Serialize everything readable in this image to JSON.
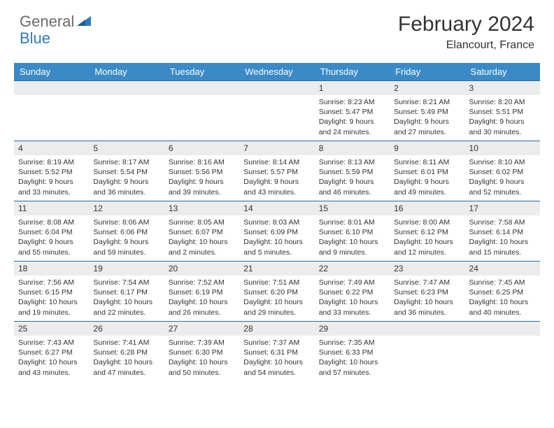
{
  "logo": {
    "general": "General",
    "blue": "Blue",
    "tri_color": "#2d7cc0"
  },
  "title": {
    "month": "February 2024",
    "location": "Elancourt, France",
    "month_fontsize": 30,
    "location_fontsize": 16,
    "title_color": "#333333"
  },
  "colors": {
    "header_bg": "#3a8ac8",
    "header_fg": "#ffffff",
    "row_border": "#2d6aa0",
    "daynum_bg": "#ececec",
    "body_text": "#333333",
    "page_bg": "#ffffff"
  },
  "typography": {
    "body_font": "Arial",
    "daybody_fontsize": 10.5,
    "daynum_fontsize": 12,
    "header_fontsize": 13
  },
  "calendar": {
    "type": "table",
    "days_of_week": [
      "Sunday",
      "Monday",
      "Tuesday",
      "Wednesday",
      "Thursday",
      "Friday",
      "Saturday"
    ],
    "weeks": [
      [
        null,
        null,
        null,
        null,
        {
          "n": "1",
          "sunrise": "8:23 AM",
          "sunset": "5:47 PM",
          "daylight": "9 hours and 24 minutes."
        },
        {
          "n": "2",
          "sunrise": "8:21 AM",
          "sunset": "5:49 PM",
          "daylight": "9 hours and 27 minutes."
        },
        {
          "n": "3",
          "sunrise": "8:20 AM",
          "sunset": "5:51 PM",
          "daylight": "9 hours and 30 minutes."
        }
      ],
      [
        {
          "n": "4",
          "sunrise": "8:19 AM",
          "sunset": "5:52 PM",
          "daylight": "9 hours and 33 minutes."
        },
        {
          "n": "5",
          "sunrise": "8:17 AM",
          "sunset": "5:54 PM",
          "daylight": "9 hours and 36 minutes."
        },
        {
          "n": "6",
          "sunrise": "8:16 AM",
          "sunset": "5:56 PM",
          "daylight": "9 hours and 39 minutes."
        },
        {
          "n": "7",
          "sunrise": "8:14 AM",
          "sunset": "5:57 PM",
          "daylight": "9 hours and 43 minutes."
        },
        {
          "n": "8",
          "sunrise": "8:13 AM",
          "sunset": "5:59 PM",
          "daylight": "9 hours and 46 minutes."
        },
        {
          "n": "9",
          "sunrise": "8:11 AM",
          "sunset": "6:01 PM",
          "daylight": "9 hours and 49 minutes."
        },
        {
          "n": "10",
          "sunrise": "8:10 AM",
          "sunset": "6:02 PM",
          "daylight": "9 hours and 52 minutes."
        }
      ],
      [
        {
          "n": "11",
          "sunrise": "8:08 AM",
          "sunset": "6:04 PM",
          "daylight": "9 hours and 55 minutes."
        },
        {
          "n": "12",
          "sunrise": "8:06 AM",
          "sunset": "6:06 PM",
          "daylight": "9 hours and 59 minutes."
        },
        {
          "n": "13",
          "sunrise": "8:05 AM",
          "sunset": "6:07 PM",
          "daylight": "10 hours and 2 minutes."
        },
        {
          "n": "14",
          "sunrise": "8:03 AM",
          "sunset": "6:09 PM",
          "daylight": "10 hours and 5 minutes."
        },
        {
          "n": "15",
          "sunrise": "8:01 AM",
          "sunset": "6:10 PM",
          "daylight": "10 hours and 9 minutes."
        },
        {
          "n": "16",
          "sunrise": "8:00 AM",
          "sunset": "6:12 PM",
          "daylight": "10 hours and 12 minutes."
        },
        {
          "n": "17",
          "sunrise": "7:58 AM",
          "sunset": "6:14 PM",
          "daylight": "10 hours and 15 minutes."
        }
      ],
      [
        {
          "n": "18",
          "sunrise": "7:56 AM",
          "sunset": "6:15 PM",
          "daylight": "10 hours and 19 minutes."
        },
        {
          "n": "19",
          "sunrise": "7:54 AM",
          "sunset": "6:17 PM",
          "daylight": "10 hours and 22 minutes."
        },
        {
          "n": "20",
          "sunrise": "7:52 AM",
          "sunset": "6:19 PM",
          "daylight": "10 hours and 26 minutes."
        },
        {
          "n": "21",
          "sunrise": "7:51 AM",
          "sunset": "6:20 PM",
          "daylight": "10 hours and 29 minutes."
        },
        {
          "n": "22",
          "sunrise": "7:49 AM",
          "sunset": "6:22 PM",
          "daylight": "10 hours and 33 minutes."
        },
        {
          "n": "23",
          "sunrise": "7:47 AM",
          "sunset": "6:23 PM",
          "daylight": "10 hours and 36 minutes."
        },
        {
          "n": "24",
          "sunrise": "7:45 AM",
          "sunset": "6:25 PM",
          "daylight": "10 hours and 40 minutes."
        }
      ],
      [
        {
          "n": "25",
          "sunrise": "7:43 AM",
          "sunset": "6:27 PM",
          "daylight": "10 hours and 43 minutes."
        },
        {
          "n": "26",
          "sunrise": "7:41 AM",
          "sunset": "6:28 PM",
          "daylight": "10 hours and 47 minutes."
        },
        {
          "n": "27",
          "sunrise": "7:39 AM",
          "sunset": "6:30 PM",
          "daylight": "10 hours and 50 minutes."
        },
        {
          "n": "28",
          "sunrise": "7:37 AM",
          "sunset": "6:31 PM",
          "daylight": "10 hours and 54 minutes."
        },
        {
          "n": "29",
          "sunrise": "7:35 AM",
          "sunset": "6:33 PM",
          "daylight": "10 hours and 57 minutes."
        },
        null,
        null
      ]
    ],
    "labels": {
      "sunrise": "Sunrise:",
      "sunset": "Sunset:",
      "daylight": "Daylight:"
    }
  }
}
